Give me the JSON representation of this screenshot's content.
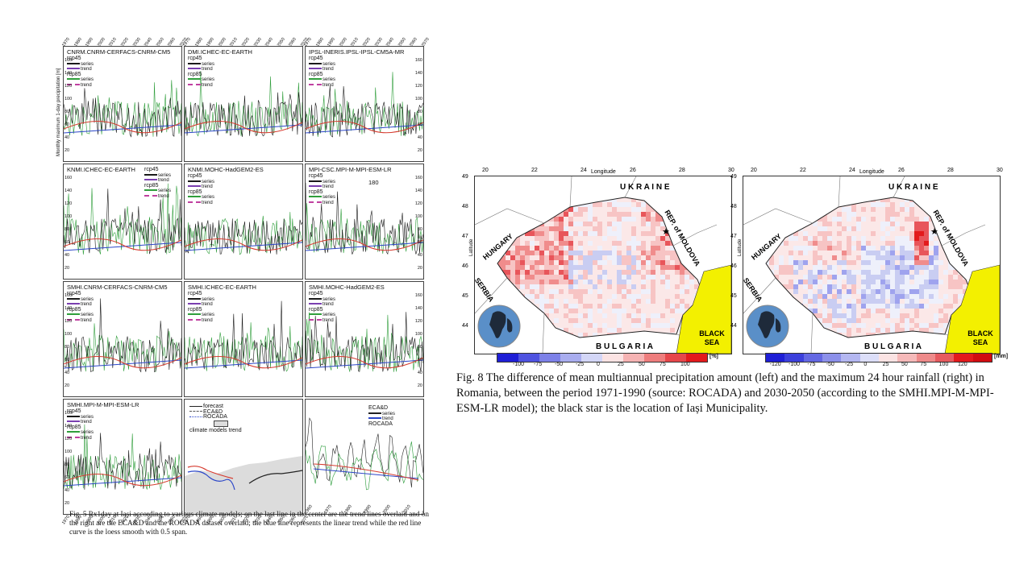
{
  "fig5": {
    "ylabel": "Monthly maximum 1-day precipitation [m]",
    "xticks": [
      "1970",
      "1980",
      "1990",
      "2000",
      "2010",
      "2020",
      "2030",
      "2040",
      "2050",
      "2060",
      "2070"
    ],
    "yticks": [
      "160",
      "140",
      "120",
      "100",
      "80",
      "60",
      "40",
      "20"
    ],
    "legend": {
      "rcp45": "rcp45",
      "rcp85": "rcp85",
      "series": "series",
      "trend": "trend"
    },
    "panels": [
      {
        "title": "CNRM.CNRM-CERFACS-CNRM-CM5"
      },
      {
        "title": "DMI.ICHEC-EC-EARTH"
      },
      {
        "title": "IPSL-INERIS.IPSL-IPSL-CM5A-MR"
      },
      {
        "title": "KNMI.ICHEC-EC-EARTH"
      },
      {
        "title": "KNMI.MOHC-HadGEM2-ES"
      },
      {
        "title": "MPI-CSC.MPI-M-MPI-ESM-LR",
        "annotation": "180"
      },
      {
        "title": "SMHI.CNRM-CERFACS-CNRM-CM5"
      },
      {
        "title": "SMHI.ICHEC-EC-EARTH"
      },
      {
        "title": "SMHI.MOHC-HadGEM2-ES"
      },
      {
        "title": "SMHI.MPI-M-MPI-ESM-LR"
      }
    ],
    "center_legend": {
      "forecast": "forecast",
      "eca": "ECA&D",
      "rocada": "ROCADA",
      "cmt": "climate models trend"
    },
    "right_panel": {
      "eca": "ECA&D",
      "rocada": "ROCADA",
      "series": "series",
      "trend": "trend",
      "xticks": [
        "1960",
        "1970",
        "1980",
        "1990",
        "2000",
        "2010",
        "2020"
      ]
    },
    "caption": "Fig. 5 Rx1day at Iași according to various climate models; on the last line in the center are the trend lines overlaid and on the right are the ECA&D and the ROCADA dataset overlaid; the blue line represents the linear trend while the red line curve is the loess smooth with 0.5 span."
  },
  "fig8": {
    "longitude_label": "Longitude",
    "latitude_label": "Latitude",
    "lon_ticks": [
      "20",
      "22",
      "24",
      "26",
      "28",
      "30"
    ],
    "lat_ticks": [
      "49",
      "48",
      "47",
      "46",
      "45",
      "44"
    ],
    "labels": {
      "ukraine": "U K R A I N E",
      "hungary": "HUNGARY",
      "moldova": "REP. of MOLDOVA",
      "serbia": "SERBIA",
      "bulgaria": "B U L G A R I A",
      "black_sea": "BLACK SEA"
    },
    "left_map": {
      "unit": "[%]",
      "cbar_ticks": [
        "-100",
        "-75",
        "-50",
        "-25",
        "0",
        "25",
        "50",
        "75",
        "100"
      ]
    },
    "right_map": {
      "unit": "[mm]",
      "cbar_ticks": [
        "-120",
        "-100",
        "-75",
        "-50",
        "-25",
        "0",
        "25",
        "50",
        "75",
        "100",
        "120"
      ]
    },
    "colors": {
      "blue_dark": "#1f1fd6",
      "blue_light": "#c9cdf2",
      "red_light": "#f7c4c4",
      "red_dark": "#e31a1c",
      "sea": "#f3f000"
    },
    "caption": "Fig. 8 The difference of mean multiannual precipitation amount (left) and the maximum 24 hour rainfall (right) in Romania, between the period 1971-1990 (source: ROCADA) and 2030-2050 (according to the SMHI.MPI-M-MPI-ESM-LR model); the black star is the location of Iași Municipality."
  }
}
